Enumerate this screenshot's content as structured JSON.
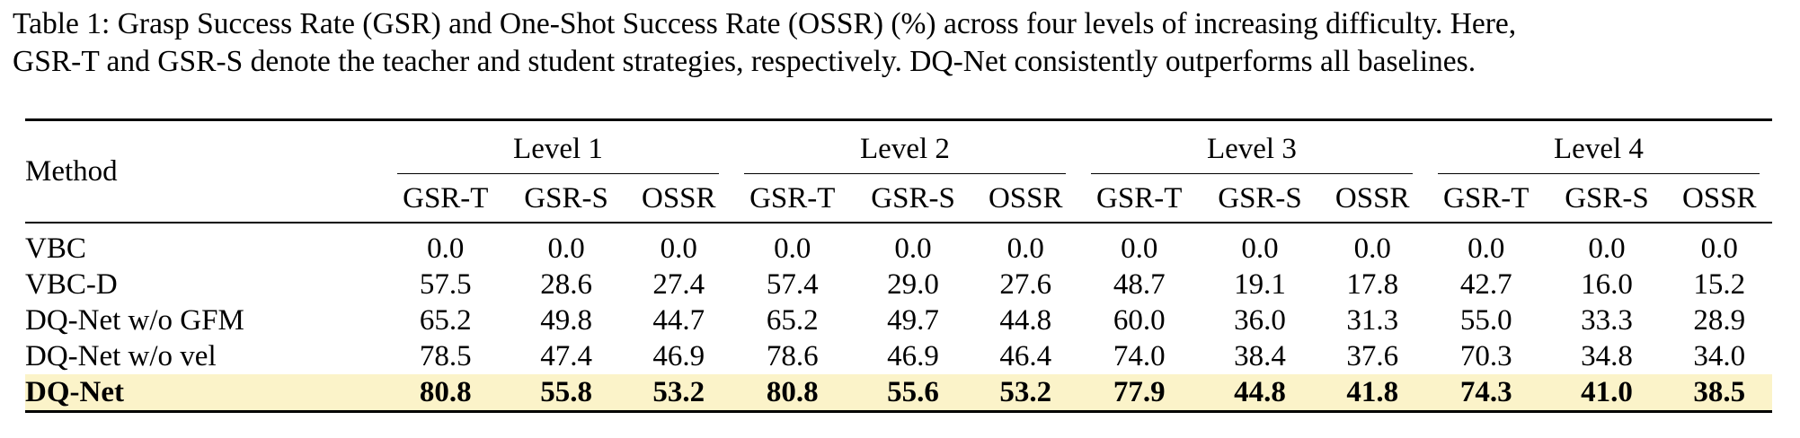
{
  "caption": {
    "line1": "Table 1: Grasp Success Rate (GSR) and One-Shot Success Rate (OSSR) (%) across four levels of increasing difficulty. Here,",
    "line2": "GSR-T and GSR-S denote the teacher and student strategies, respectively. DQ-Net consistently outperforms all baselines."
  },
  "table": {
    "method_header": "Method",
    "levels": [
      "Level 1",
      "Level 2",
      "Level 3",
      "Level 4"
    ],
    "metrics": [
      "GSR-T",
      "GSR-S",
      "OSSR"
    ],
    "rows": [
      {
        "method": "VBC",
        "values": [
          "0.0",
          "0.0",
          "0.0",
          "0.0",
          "0.0",
          "0.0",
          "0.0",
          "0.0",
          "0.0",
          "0.0",
          "0.0",
          "0.0"
        ]
      },
      {
        "method": "VBC-D",
        "values": [
          "57.5",
          "28.6",
          "27.4",
          "57.4",
          "29.0",
          "27.6",
          "48.7",
          "19.1",
          "17.8",
          "42.7",
          "16.0",
          "15.2"
        ]
      },
      {
        "method": "DQ-Net w/o GFM",
        "values": [
          "65.2",
          "49.8",
          "44.7",
          "65.2",
          "49.7",
          "44.8",
          "60.0",
          "36.0",
          "31.3",
          "55.0",
          "33.3",
          "28.9"
        ]
      },
      {
        "method": "DQ-Net w/o vel",
        "values": [
          "78.5",
          "47.4",
          "46.9",
          "78.6",
          "46.9",
          "46.4",
          "74.0",
          "38.4",
          "37.6",
          "70.3",
          "34.8",
          "34.0"
        ]
      },
      {
        "method": "DQ-Net",
        "values": [
          "80.8",
          "55.8",
          "53.2",
          "80.8",
          "55.6",
          "53.2",
          "77.9",
          "44.8",
          "41.8",
          "74.3",
          "41.0",
          "38.5"
        ]
      }
    ],
    "highlight_row_color": "#fbf3c9"
  }
}
